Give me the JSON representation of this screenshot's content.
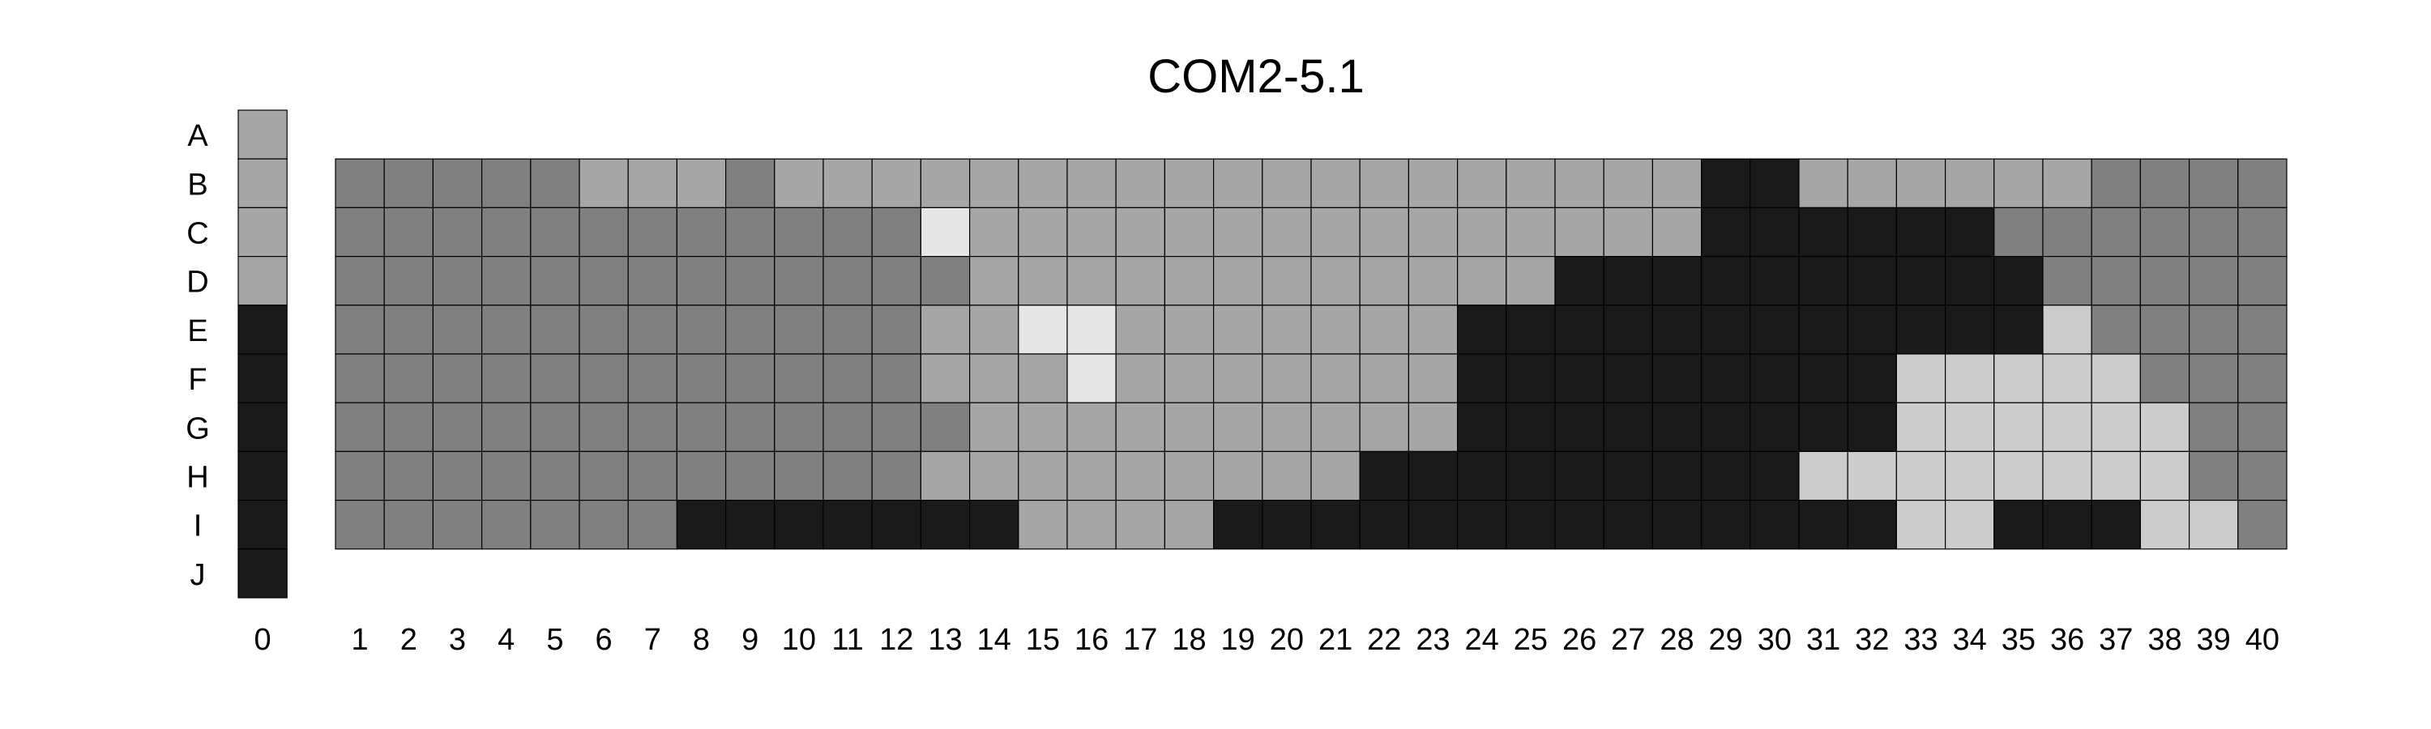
{
  "chart_data": {
    "type": "heatmap",
    "title": "COM2-5.1",
    "row_labels": [
      "A",
      "B",
      "C",
      "D",
      "E",
      "F",
      "G",
      "H",
      "I",
      "J"
    ],
    "column_labels": [
      "0",
      "1",
      "2",
      "3",
      "4",
      "5",
      "6",
      "7",
      "8",
      "9",
      "10",
      "11",
      "12",
      "13",
      "14",
      "15",
      "16",
      "17",
      "18",
      "19",
      "20",
      "21",
      "22",
      "23",
      "24",
      "25",
      "26",
      "27",
      "28",
      "29",
      "30",
      "31",
      "32",
      "33",
      "34",
      "35",
      "36",
      "37",
      "38",
      "39",
      "40"
    ],
    "palette": {
      "black": "#1a1a1a",
      "dark_gray": "#808080",
      "mid_gray": "#a6a6a6",
      "light_gray": "#cccccc",
      "very_light_gray": "#e6e6e6"
    },
    "column_0": [
      "M",
      "M",
      "M",
      "M",
      "K",
      "K",
      "K",
      "K",
      "K",
      "K"
    ],
    "grid_rows": [
      "B",
      "C",
      "D",
      "E",
      "F",
      "G",
      "H",
      "I"
    ],
    "grid_columns_start": 1,
    "grid": [
      "DDDDDMMMDMMMMMMMMMMMMMMMMMMMKKMMMMMMDDDD",
      "DDDDDDDDDDDDVMMMMMMMMMMMMMMMKKKKKKDDDDDD",
      "DDDDDDDDDDDDDMMMMMMMMMMMMKKKKKKKKKKDDDDD",
      "DDDDDDDDDDDDMMVVMMMMMMMKKKKKKKKKKKKLDDDD",
      "DDDDDDDDDDDDMMMVMMMMMMMKKKKKKKKKLLLLLDDD",
      "DDDDDDDDDDDDDMMMMMMMMMMKKKKKKKKKLLLLLLDD",
      "DDDDDDDDDDDDMMMMMMMMMKKKKKKKKKLLLLLLLLDD",
      "DDDDDDDKKKKKKKMMMMKKKKKKKKKKKKKKLLKKKLLD"
    ]
  }
}
